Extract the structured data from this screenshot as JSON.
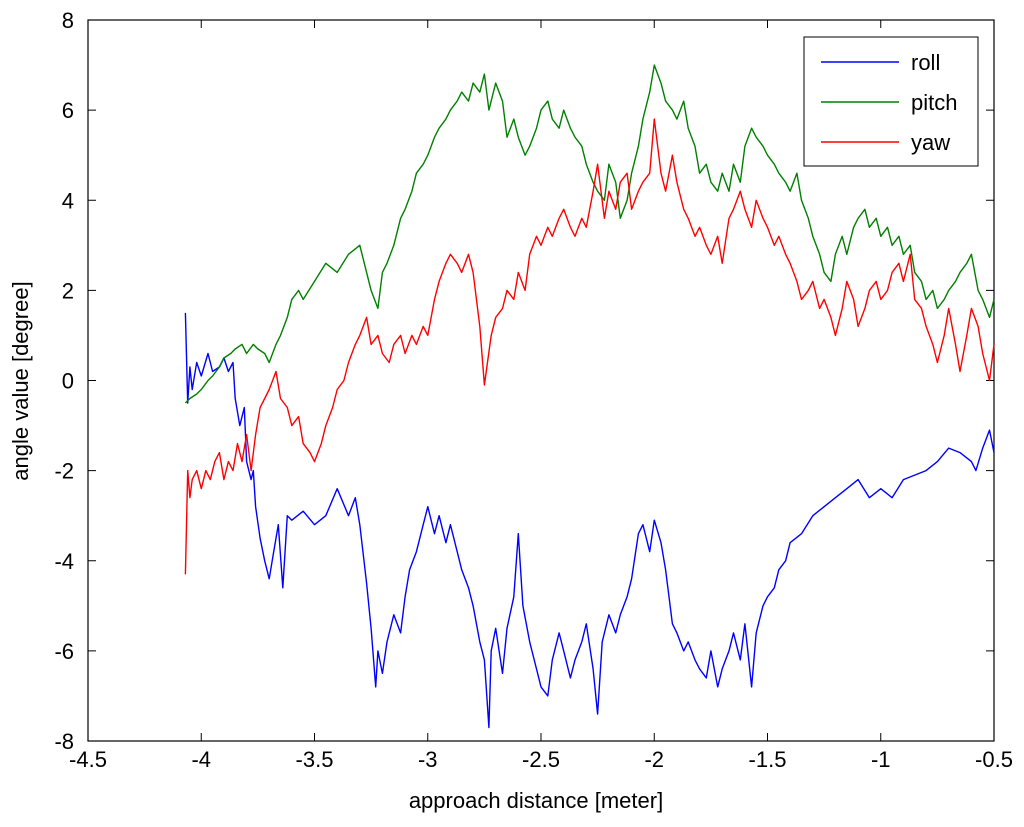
{
  "chart_data": {
    "type": "line",
    "xlabel": "approach distance [meter]",
    "ylabel": "angle value [degree]",
    "xlim": [
      -4.5,
      -0.5
    ],
    "ylim": [
      -8,
      8
    ],
    "xticks": [
      -4.5,
      -4,
      -3.5,
      -3,
      -2.5,
      -2,
      -1.5,
      -1,
      -0.5
    ],
    "yticks": [
      -8,
      -6,
      -4,
      -2,
      0,
      2,
      4,
      6,
      8
    ],
    "xtick_labels": [
      "-4.5",
      "-4",
      "-3.5",
      "-3",
      "-2.5",
      "-2",
      "-1.5",
      "-1",
      "-0.5"
    ],
    "ytick_labels": [
      "-8",
      "-6",
      "-4",
      "-2",
      "0",
      "2",
      "4",
      "6",
      "8"
    ],
    "grid": false,
    "legend_position": "top-right",
    "series": [
      {
        "name": "roll",
        "color": "#0000ff",
        "x": [
          -4.07,
          -4.06,
          -4.05,
          -4.04,
          -4.02,
          -4.0,
          -3.97,
          -3.95,
          -3.92,
          -3.9,
          -3.88,
          -3.86,
          -3.85,
          -3.83,
          -3.81,
          -3.8,
          -3.78,
          -3.77,
          -3.76,
          -3.74,
          -3.72,
          -3.7,
          -3.68,
          -3.66,
          -3.64,
          -3.62,
          -3.6,
          -3.55,
          -3.5,
          -3.45,
          -3.4,
          -3.35,
          -3.32,
          -3.3,
          -3.27,
          -3.25,
          -3.23,
          -3.22,
          -3.2,
          -3.18,
          -3.15,
          -3.12,
          -3.1,
          -3.08,
          -3.05,
          -3.02,
          -3.0,
          -2.97,
          -2.95,
          -2.92,
          -2.9,
          -2.87,
          -2.85,
          -2.82,
          -2.8,
          -2.77,
          -2.75,
          -2.73,
          -2.72,
          -2.7,
          -2.67,
          -2.65,
          -2.62,
          -2.6,
          -2.58,
          -2.55,
          -2.52,
          -2.5,
          -2.47,
          -2.45,
          -2.42,
          -2.4,
          -2.37,
          -2.35,
          -2.32,
          -2.3,
          -2.27,
          -2.25,
          -2.23,
          -2.2,
          -2.17,
          -2.15,
          -2.12,
          -2.1,
          -2.07,
          -2.05,
          -2.02,
          -2.0,
          -1.97,
          -1.95,
          -1.92,
          -1.9,
          -1.87,
          -1.85,
          -1.82,
          -1.8,
          -1.77,
          -1.75,
          -1.72,
          -1.7,
          -1.67,
          -1.65,
          -1.62,
          -1.6,
          -1.57,
          -1.55,
          -1.52,
          -1.5,
          -1.47,
          -1.45,
          -1.42,
          -1.4,
          -1.35,
          -1.3,
          -1.25,
          -1.2,
          -1.15,
          -1.1,
          -1.05,
          -1.0,
          -0.95,
          -0.9,
          -0.85,
          -0.8,
          -0.75,
          -0.7,
          -0.65,
          -0.6,
          -0.58,
          -0.55,
          -0.52,
          -0.5
        ],
        "y": [
          1.5,
          -0.5,
          0.3,
          -0.2,
          0.4,
          0.1,
          0.6,
          0.2,
          0.3,
          0.5,
          0.2,
          0.4,
          -0.4,
          -1.0,
          -0.6,
          -1.8,
          -2.2,
          -2.0,
          -2.8,
          -3.5,
          -4.0,
          -4.4,
          -3.8,
          -3.2,
          -4.6,
          -3.0,
          -3.1,
          -2.9,
          -3.2,
          -3.0,
          -2.4,
          -3.0,
          -2.6,
          -3.2,
          -4.5,
          -5.5,
          -6.8,
          -6.0,
          -6.5,
          -5.8,
          -5.2,
          -5.6,
          -4.8,
          -4.2,
          -3.8,
          -3.2,
          -2.8,
          -3.4,
          -3.0,
          -3.6,
          -3.2,
          -3.8,
          -4.2,
          -4.6,
          -5.0,
          -5.8,
          -6.2,
          -7.7,
          -6.0,
          -5.5,
          -6.5,
          -5.5,
          -4.8,
          -3.4,
          -5.0,
          -5.8,
          -6.4,
          -6.8,
          -7.0,
          -6.2,
          -5.6,
          -6.0,
          -6.6,
          -6.2,
          -5.8,
          -5.4,
          -6.4,
          -7.4,
          -5.8,
          -5.2,
          -5.6,
          -5.2,
          -4.8,
          -4.4,
          -3.4,
          -3.2,
          -3.8,
          -3.1,
          -3.6,
          -4.2,
          -5.4,
          -5.6,
          -6.0,
          -5.8,
          -6.2,
          -6.4,
          -6.6,
          -6.0,
          -6.8,
          -6.4,
          -6.0,
          -5.6,
          -6.2,
          -5.4,
          -6.8,
          -5.6,
          -5.0,
          -4.8,
          -4.6,
          -4.2,
          -4.0,
          -3.6,
          -3.4,
          -3.0,
          -2.8,
          -2.6,
          -2.4,
          -2.2,
          -2.6,
          -2.4,
          -2.6,
          -2.2,
          -2.1,
          -2.0,
          -1.8,
          -1.5,
          -1.6,
          -1.8,
          -2.0,
          -1.5,
          -1.1,
          -1.6
        ]
      },
      {
        "name": "pitch",
        "color": "#008000",
        "x": [
          -4.07,
          -4.05,
          -4.02,
          -4.0,
          -3.97,
          -3.95,
          -3.92,
          -3.9,
          -3.87,
          -3.85,
          -3.82,
          -3.8,
          -3.77,
          -3.75,
          -3.72,
          -3.7,
          -3.67,
          -3.65,
          -3.62,
          -3.6,
          -3.57,
          -3.55,
          -3.5,
          -3.45,
          -3.4,
          -3.35,
          -3.3,
          -3.28,
          -3.25,
          -3.22,
          -3.2,
          -3.18,
          -3.15,
          -3.12,
          -3.1,
          -3.07,
          -3.05,
          -3.02,
          -3.0,
          -2.97,
          -2.95,
          -2.92,
          -2.9,
          -2.87,
          -2.85,
          -2.82,
          -2.8,
          -2.77,
          -2.75,
          -2.73,
          -2.7,
          -2.67,
          -2.65,
          -2.62,
          -2.6,
          -2.57,
          -2.55,
          -2.52,
          -2.5,
          -2.47,
          -2.45,
          -2.42,
          -2.4,
          -2.37,
          -2.35,
          -2.32,
          -2.3,
          -2.27,
          -2.25,
          -2.22,
          -2.2,
          -2.17,
          -2.15,
          -2.12,
          -2.1,
          -2.07,
          -2.05,
          -2.02,
          -2.0,
          -1.97,
          -1.95,
          -1.92,
          -1.9,
          -1.87,
          -1.85,
          -1.82,
          -1.8,
          -1.77,
          -1.75,
          -1.72,
          -1.7,
          -1.67,
          -1.65,
          -1.62,
          -1.6,
          -1.57,
          -1.55,
          -1.52,
          -1.5,
          -1.47,
          -1.45,
          -1.42,
          -1.4,
          -1.37,
          -1.35,
          -1.32,
          -1.3,
          -1.27,
          -1.25,
          -1.22,
          -1.2,
          -1.17,
          -1.15,
          -1.12,
          -1.1,
          -1.07,
          -1.05,
          -1.02,
          -1.0,
          -0.97,
          -0.95,
          -0.92,
          -0.9,
          -0.87,
          -0.85,
          -0.82,
          -0.8,
          -0.77,
          -0.75,
          -0.72,
          -0.7,
          -0.67,
          -0.65,
          -0.62,
          -0.6,
          -0.57,
          -0.55,
          -0.52,
          -0.5
        ],
        "y": [
          -0.5,
          -0.4,
          -0.3,
          -0.2,
          0.0,
          0.1,
          0.3,
          0.5,
          0.6,
          0.7,
          0.8,
          0.6,
          0.8,
          0.7,
          0.6,
          0.4,
          0.8,
          1.0,
          1.4,
          1.8,
          2.0,
          1.8,
          2.2,
          2.6,
          2.4,
          2.8,
          3.0,
          2.6,
          2.0,
          1.6,
          2.4,
          2.6,
          3.0,
          3.6,
          3.8,
          4.2,
          4.6,
          4.8,
          5.0,
          5.4,
          5.6,
          5.8,
          6.0,
          6.2,
          6.4,
          6.2,
          6.6,
          6.4,
          6.8,
          6.0,
          6.6,
          6.2,
          5.4,
          5.8,
          5.4,
          5.0,
          5.2,
          5.6,
          6.0,
          6.2,
          5.8,
          5.6,
          6.0,
          5.6,
          5.4,
          5.2,
          4.8,
          4.4,
          4.2,
          4.0,
          4.8,
          4.4,
          3.6,
          4.0,
          4.6,
          5.2,
          5.8,
          6.4,
          7.0,
          6.6,
          6.2,
          6.0,
          5.8,
          6.2,
          5.6,
          5.2,
          4.6,
          4.8,
          4.4,
          4.2,
          4.6,
          4.2,
          4.8,
          4.4,
          5.2,
          5.6,
          5.4,
          5.2,
          5.0,
          4.8,
          4.6,
          4.4,
          4.2,
          4.6,
          4.0,
          3.6,
          3.2,
          2.8,
          2.4,
          2.2,
          2.8,
          3.2,
          2.8,
          3.4,
          3.6,
          3.8,
          3.4,
          3.6,
          3.2,
          3.4,
          3.0,
          3.2,
          2.8,
          3.0,
          2.4,
          2.2,
          1.8,
          2.0,
          1.6,
          1.8,
          2.0,
          2.2,
          2.4,
          2.6,
          2.8,
          2.0,
          1.8,
          1.4,
          1.8
        ]
      },
      {
        "name": "yaw",
        "color": "#ff0000",
        "x": [
          -4.07,
          -4.06,
          -4.05,
          -4.04,
          -4.02,
          -4.0,
          -3.98,
          -3.96,
          -3.94,
          -3.92,
          -3.9,
          -3.88,
          -3.86,
          -3.84,
          -3.82,
          -3.8,
          -3.78,
          -3.76,
          -3.74,
          -3.72,
          -3.7,
          -3.67,
          -3.65,
          -3.62,
          -3.6,
          -3.57,
          -3.55,
          -3.52,
          -3.5,
          -3.47,
          -3.45,
          -3.42,
          -3.4,
          -3.37,
          -3.35,
          -3.32,
          -3.3,
          -3.27,
          -3.25,
          -3.22,
          -3.2,
          -3.17,
          -3.15,
          -3.12,
          -3.1,
          -3.07,
          -3.05,
          -3.02,
          -3.0,
          -2.97,
          -2.95,
          -2.92,
          -2.9,
          -2.87,
          -2.85,
          -2.82,
          -2.8,
          -2.77,
          -2.75,
          -2.72,
          -2.7,
          -2.67,
          -2.65,
          -2.62,
          -2.6,
          -2.57,
          -2.55,
          -2.52,
          -2.5,
          -2.47,
          -2.45,
          -2.42,
          -2.4,
          -2.37,
          -2.35,
          -2.32,
          -2.3,
          -2.27,
          -2.25,
          -2.22,
          -2.2,
          -2.17,
          -2.15,
          -2.12,
          -2.1,
          -2.07,
          -2.05,
          -2.02,
          -2.0,
          -1.97,
          -1.95,
          -1.92,
          -1.9,
          -1.87,
          -1.85,
          -1.82,
          -1.8,
          -1.77,
          -1.75,
          -1.72,
          -1.7,
          -1.67,
          -1.65,
          -1.62,
          -1.6,
          -1.57,
          -1.55,
          -1.52,
          -1.5,
          -1.47,
          -1.45,
          -1.42,
          -1.4,
          -1.37,
          -1.35,
          -1.32,
          -1.3,
          -1.27,
          -1.25,
          -1.22,
          -1.2,
          -1.17,
          -1.15,
          -1.12,
          -1.1,
          -1.07,
          -1.05,
          -1.02,
          -1.0,
          -0.97,
          -0.95,
          -0.92,
          -0.9,
          -0.87,
          -0.85,
          -0.82,
          -0.8,
          -0.77,
          -0.75,
          -0.72,
          -0.7,
          -0.67,
          -0.65,
          -0.62,
          -0.6,
          -0.57,
          -0.55,
          -0.52,
          -0.5
        ],
        "y": [
          -4.3,
          -2.0,
          -2.6,
          -2.2,
          -2.0,
          -2.4,
          -2.0,
          -2.2,
          -1.8,
          -1.6,
          -2.2,
          -1.8,
          -2.0,
          -1.4,
          -1.8,
          -1.2,
          -2.0,
          -1.2,
          -0.6,
          -0.4,
          -0.2,
          0.2,
          -0.4,
          -0.6,
          -1.0,
          -0.8,
          -1.4,
          -1.6,
          -1.8,
          -1.4,
          -1.0,
          -0.6,
          -0.2,
          0.0,
          0.4,
          0.8,
          1.0,
          1.4,
          0.8,
          1.0,
          0.6,
          0.4,
          0.8,
          1.0,
          0.6,
          1.0,
          0.8,
          1.2,
          1.0,
          1.8,
          2.2,
          2.6,
          2.8,
          2.6,
          2.4,
          2.8,
          2.4,
          1.2,
          -0.1,
          1.0,
          1.4,
          1.6,
          2.0,
          1.8,
          2.4,
          2.0,
          2.8,
          3.2,
          3.0,
          3.4,
          3.2,
          3.6,
          3.8,
          3.4,
          3.2,
          3.6,
          3.4,
          4.2,
          4.8,
          3.6,
          4.2,
          3.8,
          4.4,
          4.6,
          3.8,
          4.2,
          4.4,
          4.6,
          5.8,
          4.6,
          4.2,
          5.0,
          4.4,
          3.8,
          3.6,
          3.2,
          3.4,
          3.0,
          2.8,
          3.2,
          2.6,
          3.6,
          3.8,
          4.2,
          3.8,
          3.4,
          4.0,
          3.6,
          3.4,
          3.0,
          3.2,
          2.8,
          2.6,
          2.2,
          1.8,
          2.0,
          2.2,
          1.6,
          1.8,
          1.4,
          1.0,
          1.6,
          2.2,
          1.8,
          1.2,
          1.6,
          2.0,
          2.2,
          1.8,
          2.0,
          2.4,
          2.6,
          2.2,
          2.8,
          1.8,
          1.6,
          1.2,
          0.8,
          0.4,
          1.0,
          1.6,
          0.8,
          0.2,
          1.0,
          1.6,
          1.2,
          0.6,
          0.0,
          0.8
        ]
      }
    ]
  }
}
